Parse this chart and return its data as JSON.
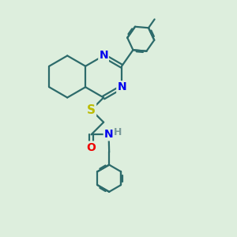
{
  "bg_color": "#ddeedd",
  "bond_color": "#2d6b6b",
  "N_color": "#0000ee",
  "O_color": "#ee0000",
  "S_color": "#bbbb00",
  "H_color": "#7a9a9a",
  "line_width": 1.6,
  "font_size": 10,
  "xlim": [
    0,
    10
  ],
  "ylim": [
    0,
    10
  ]
}
